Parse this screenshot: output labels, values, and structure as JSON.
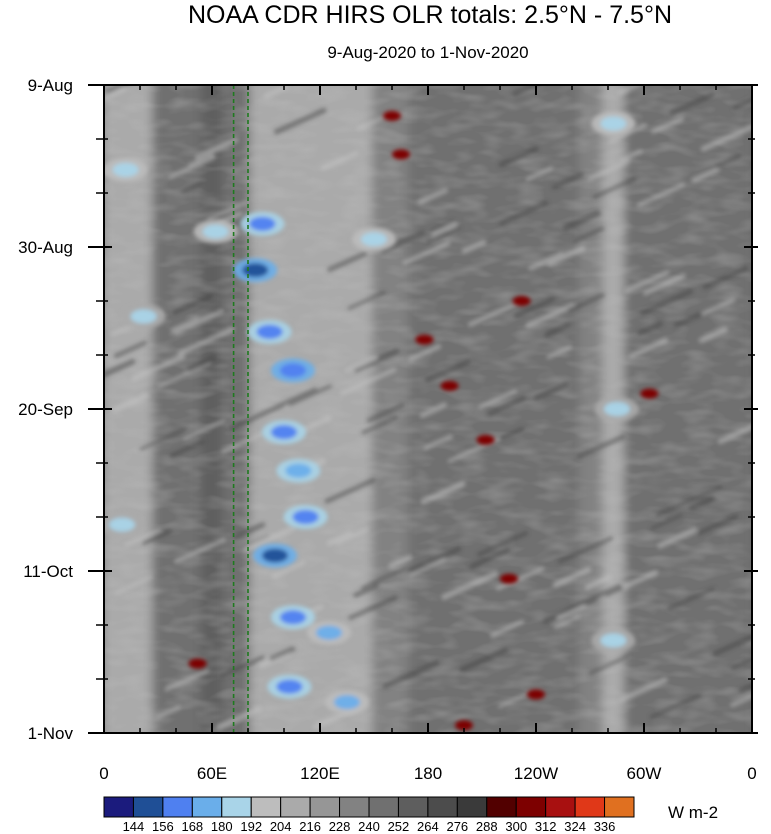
{
  "chart_data": {
    "type": "heatmap",
    "title": "NOAA CDR HIRS OLR totals: 2.5°N - 7.5°N",
    "subtitle": "9-Aug-2020 to 1-Nov-2020",
    "x_ticks": [
      "0",
      "60E",
      "120E",
      "180",
      "120W",
      "60W",
      "0"
    ],
    "y_ticks": [
      "9-Aug",
      "30-Aug",
      "20-Sep",
      "11-Oct",
      "1-Nov"
    ],
    "x_range_deg_east": [
      0,
      360
    ],
    "y_range": [
      "2020-08-09",
      "2020-11-01"
    ],
    "grid": false,
    "reference_lines_deg_east": [
      72,
      80
    ],
    "reference_line_color": "#1f7a1f",
    "colorbar": {
      "labels": [
        "144",
        "156",
        "168",
        "180",
        "192",
        "204",
        "216",
        "228",
        "240",
        "252",
        "264",
        "276",
        "288",
        "300",
        "312",
        "324",
        "336"
      ],
      "colors": [
        "#1b1b7d",
        "#1f4f96",
        "#4f80f0",
        "#6aaeea",
        "#a9d4e8",
        "#bdbdbd",
        "#aaaaaa",
        "#969696",
        "#828282",
        "#707070",
        "#5e5e5e",
        "#4c4c4c",
        "#3a3a3a",
        "#520000",
        "#7d0000",
        "#a81010",
        "#e03818",
        "#e07020"
      ],
      "units": "W m-2"
    },
    "convective_features": [
      {
        "lon": 12,
        "date": "2020-08-20",
        "value": 185
      },
      {
        "lon": 22,
        "date": "2020-09-08",
        "value": 188
      },
      {
        "lon": 10,
        "date": "2020-10-05",
        "value": 186
      },
      {
        "lon": 62,
        "date": "2020-08-28",
        "value": 182
      },
      {
        "lon": 88,
        "date": "2020-08-27",
        "value": 165
      },
      {
        "lon": 84,
        "date": "2020-09-02",
        "value": 150
      },
      {
        "lon": 92,
        "date": "2020-09-10",
        "value": 165
      },
      {
        "lon": 105,
        "date": "2020-09-15",
        "value": 160
      },
      {
        "lon": 100,
        "date": "2020-09-23",
        "value": 165
      },
      {
        "lon": 108,
        "date": "2020-09-28",
        "value": 170
      },
      {
        "lon": 112,
        "date": "2020-10-04",
        "value": 162
      },
      {
        "lon": 95,
        "date": "2020-10-09",
        "value": 150
      },
      {
        "lon": 105,
        "date": "2020-10-17",
        "value": 162
      },
      {
        "lon": 125,
        "date": "2020-10-19",
        "value": 175
      },
      {
        "lon": 103,
        "date": "2020-10-26",
        "value": 165
      },
      {
        "lon": 135,
        "date": "2020-10-28",
        "value": 178
      },
      {
        "lon": 150,
        "date": "2020-08-29",
        "value": 185
      },
      {
        "lon": 283,
        "date": "2020-08-14",
        "value": 182
      },
      {
        "lon": 285,
        "date": "2020-09-20",
        "value": 188
      },
      {
        "lon": 283,
        "date": "2020-10-20",
        "value": 186
      }
    ],
    "warm_features": [
      {
        "lon": 160,
        "date": "2020-08-13",
        "value": 305
      },
      {
        "lon": 165,
        "date": "2020-08-18",
        "value": 305
      },
      {
        "lon": 178,
        "date": "2020-09-11",
        "value": 305
      },
      {
        "lon": 192,
        "date": "2020-09-17",
        "value": 305
      },
      {
        "lon": 212,
        "date": "2020-09-24",
        "value": 310
      },
      {
        "lon": 232,
        "date": "2020-09-06",
        "value": 305
      },
      {
        "lon": 303,
        "date": "2020-09-18",
        "value": 305
      },
      {
        "lon": 52,
        "date": "2020-10-23",
        "value": 305
      },
      {
        "lon": 225,
        "date": "2020-10-12",
        "value": 305
      },
      {
        "lon": 240,
        "date": "2020-10-27",
        "value": 305
      },
      {
        "lon": 200,
        "date": "2020-10-31",
        "value": 305
      }
    ]
  }
}
